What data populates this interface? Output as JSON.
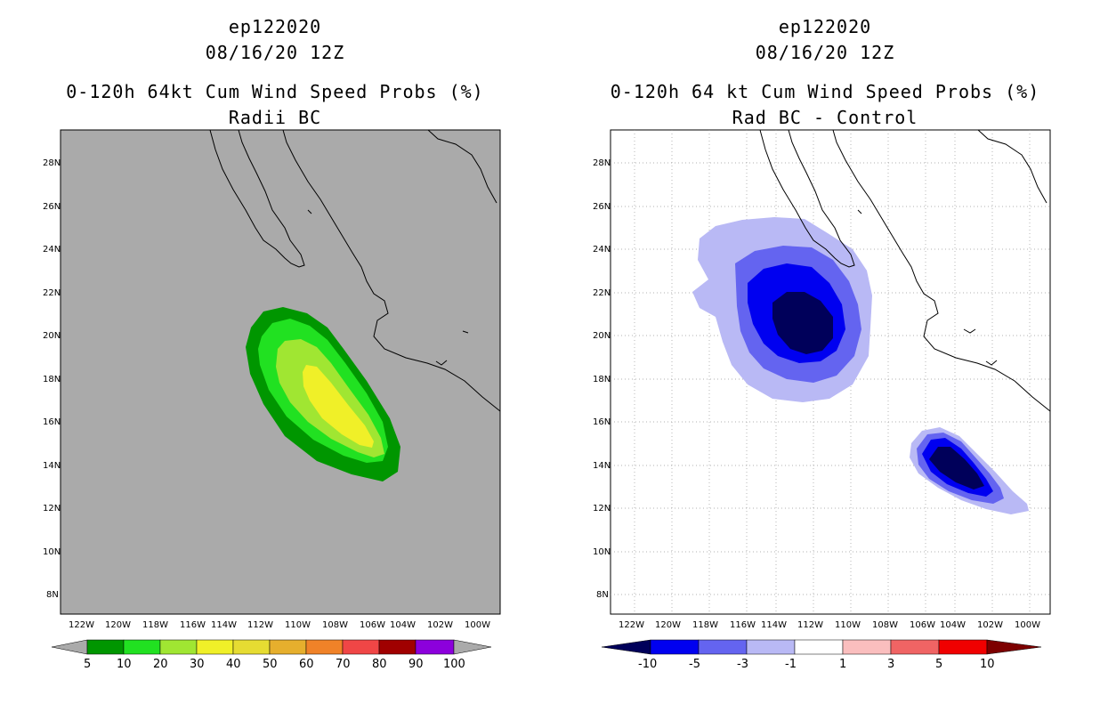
{
  "left_panel": {
    "title_line1": "ep122020",
    "title_line2": "08/16/20 12Z",
    "title_line3": "0-120h 64kt Cum Wind Speed Probs (%)",
    "title_line4": "Radii BC",
    "colorbar": {
      "colors": [
        "#009600",
        "#21e121",
        "#a0e632",
        "#f0f028",
        "#e6dc32",
        "#e6af2d",
        "#f08228",
        "#f04646",
        "#a00000",
        "#8c00dc"
      ],
      "tick_labels": [
        "5",
        "10",
        "20",
        "30",
        "40",
        "50",
        "60",
        "70",
        "80",
        "90",
        "100"
      ]
    }
  },
  "right_panel": {
    "title_line1": "ep122020",
    "title_line2": "08/16/20 12Z",
    "title_line3": "0-120h 64 kt Cum Wind Speed Probs (%)",
    "title_line4": "Rad BC - Control",
    "colorbar": {
      "colors": [
        "#00005a",
        "#0000f0",
        "#6464f0",
        "#b9b9f5",
        "#ffffff",
        "#fabebe",
        "#f06464",
        "#f00000",
        "#7d0000"
      ],
      "tick_labels": [
        "-10",
        "-5",
        "-3",
        "-1",
        "1",
        "3",
        "5",
        "10"
      ]
    }
  },
  "map": {
    "lat_labels": [
      "28N",
      "26N",
      "24N",
      "22N",
      "20N",
      "18N",
      "16N",
      "14N",
      "12N",
      "10N",
      "8N"
    ],
    "lon_labels": [
      "122W",
      "120W",
      "118W",
      "116W",
      "114W",
      "112W",
      "110W",
      "108W",
      "106W",
      "104W",
      "102W",
      "100W"
    ],
    "land_fill_left": "#aaaaaa",
    "ocean_fill_right": "#ffffff"
  }
}
